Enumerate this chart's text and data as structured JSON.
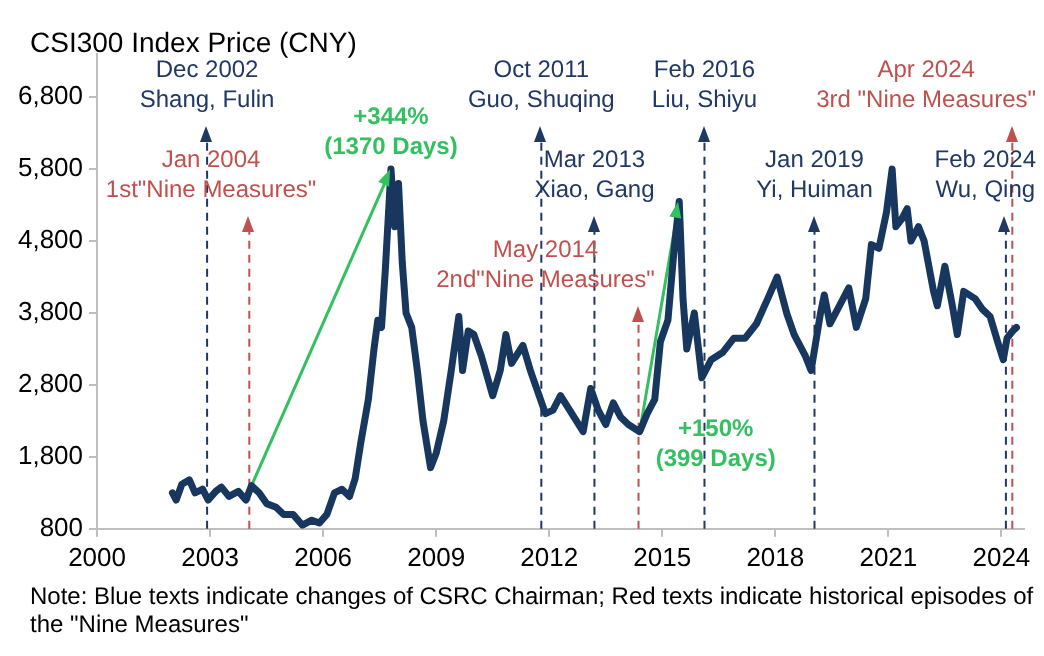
{
  "chart_data": {
    "type": "line",
    "title": "CSI300 Index Price (CNY)",
    "x": [
      2002.0,
      2002.1,
      2002.25,
      2002.45,
      2002.6,
      2002.8,
      2002.95,
      2003.15,
      2003.3,
      2003.5,
      2003.75,
      2003.95,
      2004.1,
      2004.3,
      2004.5,
      2004.75,
      2004.95,
      2005.2,
      2005.45,
      2005.7,
      2005.9,
      2006.1,
      2006.3,
      2006.5,
      2006.7,
      2006.85,
      2007.0,
      2007.2,
      2007.35,
      2007.45,
      2007.55,
      2007.65,
      2007.8,
      2007.9,
      2008.0,
      2008.1,
      2008.2,
      2008.35,
      2008.5,
      2008.65,
      2008.85,
      2009.0,
      2009.2,
      2009.4,
      2009.6,
      2009.7,
      2009.85,
      2010.0,
      2010.2,
      2010.5,
      2010.7,
      2010.85,
      2011.0,
      2011.3,
      2011.5,
      2011.7,
      2011.9,
      2012.1,
      2012.3,
      2012.6,
      2012.9,
      2013.1,
      2013.3,
      2013.5,
      2013.7,
      2013.9,
      2014.1,
      2014.4,
      2014.6,
      2014.8,
      2014.95,
      2015.15,
      2015.3,
      2015.45,
      2015.55,
      2015.65,
      2015.85,
      2016.05,
      2016.3,
      2016.6,
      2016.9,
      2017.2,
      2017.5,
      2017.8,
      2018.05,
      2018.3,
      2018.5,
      2018.8,
      2018.95,
      2019.2,
      2019.3,
      2019.45,
      2019.7,
      2019.95,
      2020.15,
      2020.4,
      2020.55,
      2020.75,
      2020.95,
      2021.1,
      2021.2,
      2021.35,
      2021.5,
      2021.6,
      2021.8,
      2021.95,
      2022.2,
      2022.3,
      2022.5,
      2022.7,
      2022.83,
      2023.0,
      2023.3,
      2023.5,
      2023.7,
      2023.9,
      2024.05,
      2024.15,
      2024.3,
      2024.4
    ],
    "series": [
      {
        "color": "#17375e",
        "values": [
          1300,
          1200,
          1420,
          1480,
          1300,
          1350,
          1200,
          1320,
          1380,
          1250,
          1320,
          1200,
          1400,
          1300,
          1150,
          1100,
          1000,
          1000,
          850,
          920,
          880,
          1000,
          1300,
          1350,
          1250,
          1500,
          2000,
          2600,
          3300,
          3700,
          3600,
          4400,
          5800,
          5000,
          5600,
          4500,
          3800,
          3600,
          3000,
          2300,
          1650,
          1850,
          2300,
          3000,
          3750,
          3000,
          3550,
          3500,
          3200,
          2650,
          3000,
          3500,
          3100,
          3350,
          3000,
          2700,
          2400,
          2450,
          2650,
          2400,
          2150,
          2750,
          2450,
          2250,
          2550,
          2350,
          2250,
          2150,
          2400,
          2600,
          3400,
          3700,
          4600,
          5350,
          4000,
          3300,
          3800,
          2900,
          3150,
          3250,
          3450,
          3450,
          3650,
          4000,
          4300,
          3800,
          3500,
          3200,
          3000,
          3800,
          4050,
          3650,
          3900,
          4150,
          3600,
          4000,
          4750,
          4700,
          5200,
          5800,
          5000,
          5100,
          5250,
          4800,
          5000,
          4800,
          4100,
          3900,
          4450,
          3900,
          3500,
          4100,
          4000,
          3850,
          3750,
          3400,
          3150,
          3450,
          3550,
          3600
        ]
      },
      {
        "type": "line",
        "color": "#33c060",
        "x": [
          2004.1,
          2007.8
        ],
        "values": [
          1400,
          5800
        ]
      },
      {
        "type": "line",
        "color": "#33c060",
        "x": [
          2014.4,
          2015.45
        ],
        "values": [
          2150,
          5350
        ]
      }
    ],
    "marker": "none",
    "grid": false,
    "legend": false,
    "xlim": [
      2000,
      2024.6
    ],
    "xticks": [
      2000,
      2003,
      2006,
      2009,
      2012,
      2015,
      2018,
      2021,
      2024
    ],
    "ylim": [
      800,
      7400
    ],
    "yticks": [
      {
        "value": 800,
        "label": "800"
      },
      {
        "value": 1800,
        "label": "1,800"
      },
      {
        "value": 2800,
        "label": "2,800"
      },
      {
        "value": 3800,
        "label": "3,800"
      },
      {
        "value": 4800,
        "label": "4,800"
      },
      {
        "value": 5800,
        "label": "5,800"
      },
      {
        "value": 6800,
        "label": "6,800"
      }
    ],
    "ref_lines": [
      {
        "axis": "x",
        "value": 2002.92,
        "label": "Dec 2002\nShang, Fulin",
        "color": "#1f3864",
        "line_style": "dashed"
      },
      {
        "axis": "x",
        "value": 2011.79,
        "label": "Oct 2011\nGuo, Shuqing",
        "color": "#1f3864",
        "line_style": "dashed"
      },
      {
        "axis": "x",
        "value": 2016.12,
        "label": "Feb 2016\nLiu, Shiyu",
        "color": "#1f3864",
        "line_style": "dashed"
      },
      {
        "axis": "x",
        "value": 2024.29,
        "label": "Apr 2024\n3rd \"Nine Measures\"",
        "color": "#c0504d",
        "line_style": "dashed"
      },
      {
        "axis": "x",
        "value": 2004.04,
        "label": "Jan 2004\n1st\"Nine Measures\"",
        "color": "#c0504d",
        "line_style": "dashed"
      },
      {
        "axis": "x",
        "value": 2013.2,
        "label": "Mar 2013\nXiao, Gang",
        "color": "#1f3864",
        "line_style": "dashed"
      },
      {
        "axis": "x",
        "value": 2019.04,
        "label": "Jan 2019\nYi, Huiman",
        "color": "#1f3864",
        "line_style": "dashed"
      },
      {
        "axis": "x",
        "value": 2024.12,
        "label": "Feb 2024\nWu, Qing",
        "color": "#1f3864",
        "line_style": "dashed"
      },
      {
        "axis": "x",
        "value": 2014.37,
        "label": "May 2014\n2nd\"Nine Measures\"",
        "color": "#c0504d",
        "line_style": "dashed"
      }
    ],
    "annotations": [
      {
        "text": "+344%\n(1370 Days)",
        "x": 2007.8,
        "y": 5800
      },
      {
        "text": "+150%\n(399 Days)",
        "x": 2014.4,
        "y": 2150
      },
      "Note: Blue texts  indicate changes of CSRC Chairman; Red texts indicate historical episodes of the \"Nine Measures\""
    ]
  }
}
